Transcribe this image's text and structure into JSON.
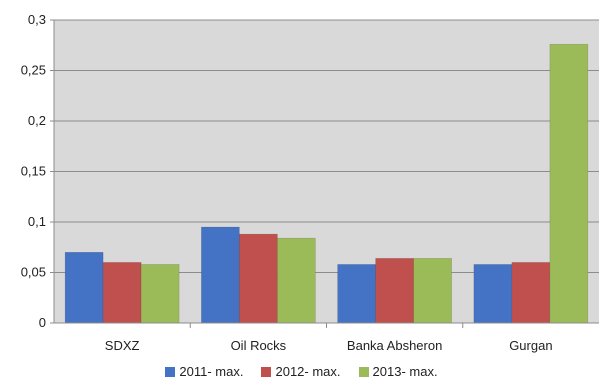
{
  "chart_data": {
    "type": "bar",
    "categories": [
      "SDXZ",
      "Oil Rocks",
      "Banka Absheron",
      "Gurgan"
    ],
    "series": [
      {
        "name": "2011- max.",
        "values": [
          0.07,
          0.095,
          0.058,
          0.058
        ],
        "color": "#4472C4"
      },
      {
        "name": "2012- max.",
        "values": [
          0.06,
          0.088,
          0.064,
          0.06
        ],
        "color": "#C0504D"
      },
      {
        "name": "2013- max.",
        "values": [
          0.058,
          0.084,
          0.064,
          0.276
        ],
        "color": "#9BBB59"
      }
    ],
    "ylim": [
      0,
      0.3
    ],
    "yticks": [
      0,
      0.05,
      0.1,
      0.15,
      0.2,
      0.25,
      0.3
    ],
    "ytick_labels": [
      "0",
      "0,05",
      "0,1",
      "0,15",
      "0,2",
      "0,25",
      "0,3"
    ],
    "grid": true,
    "legend_position": "bottom",
    "plot_background": "#D9D9D9"
  }
}
